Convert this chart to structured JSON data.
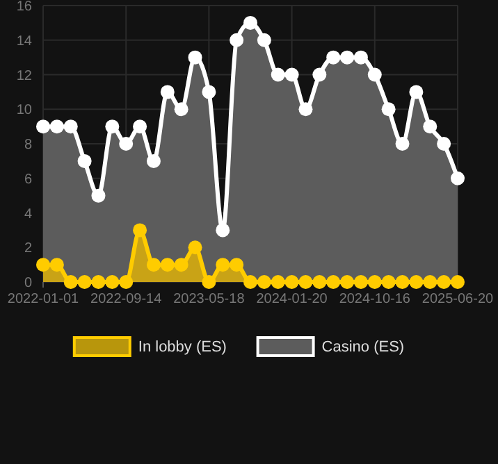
{
  "chart_data": {
    "type": "area",
    "categories": [
      "2022-01-01",
      null,
      null,
      null,
      null,
      null,
      "2022-09-14",
      null,
      null,
      null,
      null,
      null,
      "2023-05-18",
      null,
      null,
      null,
      null,
      null,
      "2024-01-20",
      null,
      null,
      null,
      null,
      null,
      "2024-10-16",
      null,
      null,
      null,
      null,
      null,
      "2025-06-20"
    ],
    "series": [
      {
        "name": "In lobby (ES)",
        "color": "#ffcc00",
        "values": [
          1,
          1,
          0,
          0,
          0,
          0,
          0,
          3,
          1,
          1,
          1,
          2,
          0,
          1,
          1,
          0,
          0,
          0,
          0,
          0,
          0,
          0,
          0,
          0,
          0,
          0,
          0,
          0,
          0,
          0,
          0
        ]
      },
      {
        "name": "Casino (ES)",
        "color": "#ffffff",
        "values": [
          9,
          9,
          9,
          7,
          5,
          9,
          8,
          9,
          7,
          11,
          10,
          13,
          11,
          3,
          14,
          15,
          14,
          12,
          12,
          10,
          12,
          13,
          13,
          13,
          12,
          10,
          8,
          11,
          9,
          8,
          6
        ]
      }
    ],
    "ylim": [
      0,
      16
    ],
    "yticks": [
      0,
      2,
      4,
      6,
      8,
      10,
      12,
      14,
      16
    ],
    "grid": true,
    "legend": "bottom",
    "marker": "circle",
    "line_style": "solid"
  }
}
